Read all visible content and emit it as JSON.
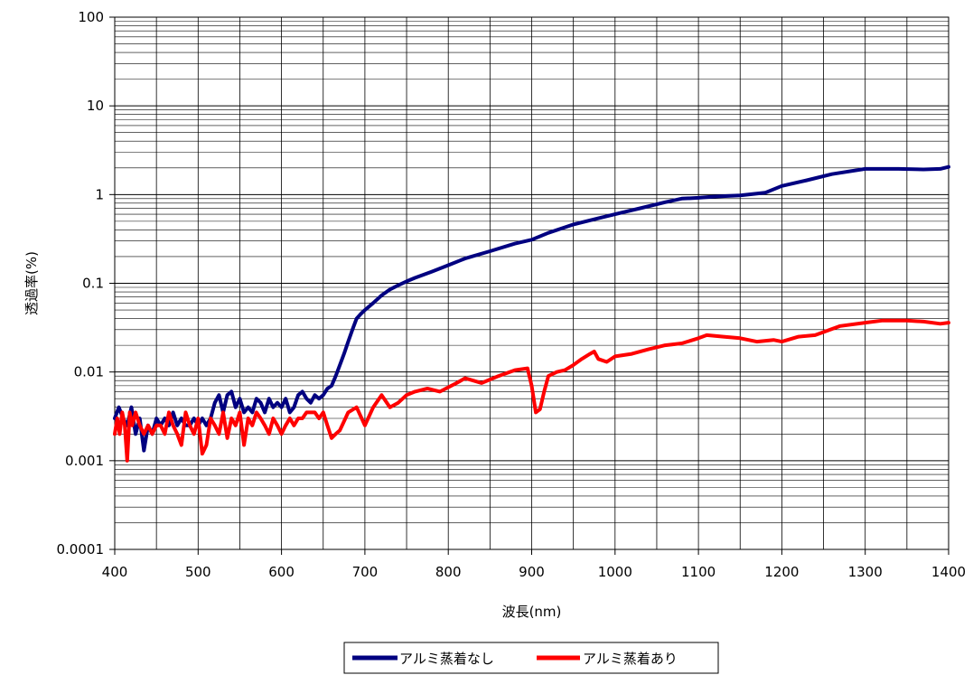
{
  "chart_data": {
    "type": "line",
    "title": "",
    "xlabel": "波長(nm)",
    "ylabel": "透過率(%)",
    "xlim": [
      400,
      1400
    ],
    "ylim": [
      0.0001,
      100
    ],
    "y_scale": "log",
    "grid": true,
    "legend_position": "bottom",
    "x_ticks": [
      "400",
      "500",
      "600",
      "700",
      "800",
      "900",
      "1000",
      "1100",
      "1200",
      "1300",
      "1400"
    ],
    "y_ticks": [
      "0.0001",
      "0.001",
      "0.01",
      "0.1",
      "1",
      "10",
      "100"
    ],
    "series": [
      {
        "name": "アルミ蒸着なし",
        "color": "#000080",
        "x": [
          400,
          405,
          410,
          415,
          420,
          425,
          430,
          435,
          440,
          445,
          450,
          455,
          460,
          465,
          470,
          475,
          480,
          485,
          490,
          495,
          500,
          505,
          510,
          515,
          520,
          525,
          530,
          535,
          540,
          545,
          550,
          555,
          560,
          565,
          570,
          575,
          580,
          585,
          590,
          595,
          600,
          605,
          610,
          615,
          620,
          625,
          630,
          635,
          640,
          645,
          650,
          655,
          660,
          665,
          670,
          675,
          680,
          685,
          690,
          695,
          700,
          710,
          720,
          730,
          740,
          750,
          760,
          780,
          800,
          820,
          850,
          880,
          900,
          920,
          950,
          980,
          1000,
          1030,
          1060,
          1080,
          1100,
          1120,
          1150,
          1180,
          1200,
          1230,
          1260,
          1300,
          1340,
          1370,
          1390,
          1400
        ],
        "values": [
          0.003,
          0.004,
          0.003,
          0.0025,
          0.004,
          0.002,
          0.003,
          0.0013,
          0.0025,
          0.002,
          0.003,
          0.0025,
          0.003,
          0.0025,
          0.0035,
          0.0025,
          0.003,
          0.0025,
          0.0025,
          0.003,
          0.0025,
          0.003,
          0.0025,
          0.003,
          0.0045,
          0.0055,
          0.0035,
          0.0055,
          0.006,
          0.004,
          0.005,
          0.0035,
          0.004,
          0.0035,
          0.005,
          0.0045,
          0.0035,
          0.005,
          0.004,
          0.0045,
          0.004,
          0.005,
          0.0035,
          0.004,
          0.0055,
          0.006,
          0.005,
          0.0045,
          0.0055,
          0.005,
          0.0055,
          0.0065,
          0.007,
          0.009,
          0.012,
          0.016,
          0.022,
          0.03,
          0.04,
          0.045,
          0.05,
          0.06,
          0.073,
          0.085,
          0.095,
          0.105,
          0.115,
          0.135,
          0.16,
          0.19,
          0.23,
          0.28,
          0.31,
          0.37,
          0.46,
          0.54,
          0.6,
          0.7,
          0.82,
          0.9,
          0.92,
          0.95,
          0.98,
          1.05,
          1.25,
          1.45,
          1.7,
          1.95,
          1.95,
          1.92,
          1.95,
          2.05
        ]
      },
      {
        "name": "アルミ蒸着あり",
        "color": "#ff0000",
        "x": [
          400,
          403,
          406,
          409,
          412,
          415,
          418,
          421,
          425,
          430,
          435,
          440,
          445,
          450,
          455,
          460,
          465,
          470,
          475,
          480,
          485,
          490,
          495,
          500,
          505,
          510,
          515,
          520,
          525,
          530,
          535,
          540,
          545,
          550,
          555,
          560,
          565,
          570,
          575,
          580,
          585,
          590,
          595,
          600,
          605,
          610,
          615,
          620,
          625,
          630,
          635,
          640,
          645,
          650,
          655,
          660,
          665,
          670,
          680,
          690,
          700,
          710,
          720,
          730,
          740,
          750,
          760,
          775,
          790,
          810,
          820,
          830,
          840,
          860,
          880,
          895,
          900,
          905,
          910,
          915,
          920,
          925,
          930,
          940,
          950,
          960,
          970,
          975,
          980,
          990,
          1000,
          1020,
          1040,
          1060,
          1080,
          1100,
          1110,
          1130,
          1150,
          1170,
          1190,
          1200,
          1220,
          1240,
          1270,
          1300,
          1320,
          1350,
          1370,
          1390,
          1400
        ],
        "values": [
          0.002,
          0.003,
          0.002,
          0.0035,
          0.0025,
          0.001,
          0.0035,
          0.0025,
          0.0035,
          0.0025,
          0.002,
          0.0025,
          0.002,
          0.0025,
          0.0025,
          0.002,
          0.0035,
          0.0025,
          0.002,
          0.0015,
          0.0035,
          0.0025,
          0.002,
          0.003,
          0.0012,
          0.0015,
          0.003,
          0.0025,
          0.002,
          0.0035,
          0.0018,
          0.003,
          0.0025,
          0.0035,
          0.0015,
          0.003,
          0.0025,
          0.0035,
          0.003,
          0.0025,
          0.002,
          0.003,
          0.0025,
          0.002,
          0.0025,
          0.003,
          0.0025,
          0.003,
          0.003,
          0.0035,
          0.0035,
          0.0035,
          0.003,
          0.0035,
          0.0025,
          0.0018,
          0.002,
          0.0022,
          0.0035,
          0.004,
          0.0025,
          0.004,
          0.0055,
          0.004,
          0.0045,
          0.0055,
          0.006,
          0.0065,
          0.006,
          0.0075,
          0.0085,
          0.008,
          0.0075,
          0.009,
          0.0105,
          0.011,
          0.007,
          0.0035,
          0.0038,
          0.006,
          0.009,
          0.0095,
          0.01,
          0.0105,
          0.012,
          0.014,
          0.016,
          0.017,
          0.014,
          0.013,
          0.015,
          0.016,
          0.018,
          0.02,
          0.021,
          0.024,
          0.026,
          0.025,
          0.024,
          0.022,
          0.023,
          0.022,
          0.025,
          0.026,
          0.033,
          0.036,
          0.038,
          0.038,
          0.037,
          0.035,
          0.036
        ]
      }
    ]
  }
}
